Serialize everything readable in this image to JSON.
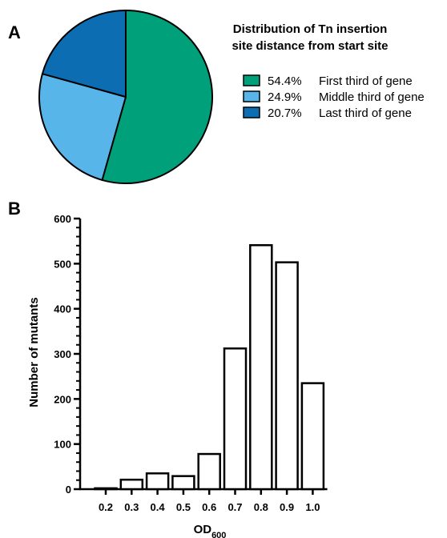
{
  "panels": {
    "a_letter": "A",
    "b_letter": "B"
  },
  "chart_data": [
    {
      "type": "pie",
      "title_lines": [
        "Distribution of Tn insertion",
        "site distance from start site"
      ],
      "slices": [
        {
          "label": "54.4%",
          "name": "First third of gene",
          "value": 54.4,
          "color": "#00a07a"
        },
        {
          "label": "24.9%",
          "name": "Middle third of gene",
          "value": 24.9,
          "color": "#58b5ea"
        },
        {
          "label": "20.7%",
          "name": "Last third of gene",
          "value": 20.7,
          "color": "#0d6db2"
        }
      ],
      "start": "12 o'clock",
      "direction": "clockwise",
      "legend_position": "right"
    },
    {
      "type": "bar",
      "categories": [
        "0.2",
        "0.3",
        "0.4",
        "0.5",
        "0.6",
        "0.7",
        "0.8",
        "0.9",
        "1.0"
      ],
      "values": [
        2,
        21,
        35,
        29,
        78,
        312,
        541,
        503,
        235
      ],
      "ylabel": "Number of mutants",
      "xlabel_main": "OD",
      "xlabel_sub": "600",
      "ylim": [
        0,
        600
      ],
      "yticks": [
        "0",
        "100",
        "200",
        "300",
        "400",
        "500",
        "600"
      ],
      "minor_ticks": true,
      "bar_fill": "#ffffff",
      "bar_stroke": "#000000",
      "grid": false
    }
  ]
}
